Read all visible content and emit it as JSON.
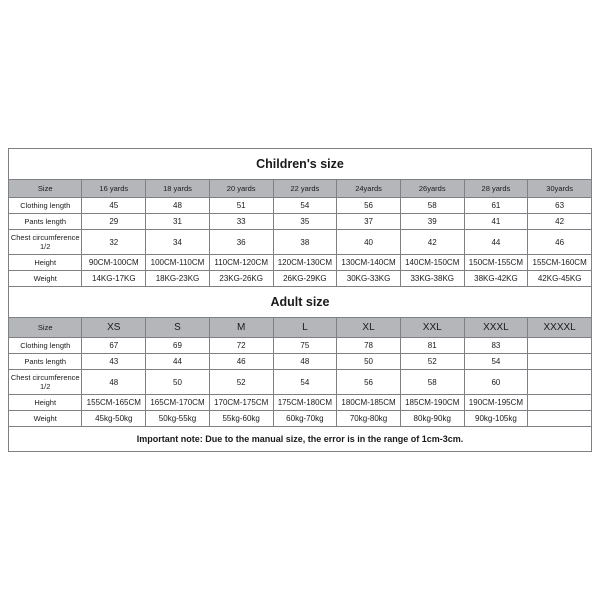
{
  "children": {
    "title": "Children's size",
    "headers": [
      "Size",
      "16 yards",
      "18 yards",
      "20 yards",
      "22 yards",
      "24yards",
      "26yards",
      "28 yards",
      "30yards"
    ],
    "rows": [
      {
        "label": "Clothing length",
        "cells": [
          "45",
          "48",
          "51",
          "54",
          "56",
          "58",
          "61",
          "63"
        ]
      },
      {
        "label": "Pants length",
        "cells": [
          "29",
          "31",
          "33",
          "35",
          "37",
          "39",
          "41",
          "42"
        ]
      },
      {
        "label": "Chest circumference 1/2",
        "cells": [
          "32",
          "34",
          "36",
          "38",
          "40",
          "42",
          "44",
          "46"
        ]
      },
      {
        "label": "Height",
        "cells": [
          "90CM-100CM",
          "100CM-110CM",
          "110CM-120CM",
          "120CM-130CM",
          "130CM-140CM",
          "140CM-150CM",
          "150CM-155CM",
          "155CM-160CM"
        ]
      },
      {
        "label": "Weight",
        "cells": [
          "14KG-17KG",
          "18KG-23KG",
          "23KG-26KG",
          "26KG-29KG",
          "30KG-33KG",
          "33KG-38KG",
          "38KG-42KG",
          "42KG-45KG"
        ]
      }
    ]
  },
  "adult": {
    "title": "Adult size",
    "headers": [
      "Size",
      "XS",
      "S",
      "M",
      "L",
      "XL",
      "XXL",
      "XXXL",
      "XXXXL"
    ],
    "rows": [
      {
        "label": "Clothing length",
        "cells": [
          "67",
          "69",
          "72",
          "75",
          "78",
          "81",
          "83",
          ""
        ]
      },
      {
        "label": "Pants length",
        "cells": [
          "43",
          "44",
          "46",
          "48",
          "50",
          "52",
          "54",
          ""
        ]
      },
      {
        "label": "Chest circumference 1/2",
        "cells": [
          "48",
          "50",
          "52",
          "54",
          "56",
          "58",
          "60",
          ""
        ]
      },
      {
        "label": "Height",
        "cells": [
          "155CM-165CM",
          "165CM-170CM",
          "170CM-175CM",
          "175CM-180CM",
          "180CM-185CM",
          "185CM-190CM",
          "190CM-195CM",
          ""
        ]
      },
      {
        "label": "Weight",
        "cells": [
          "45kg-50kg",
          "50kg-55kg",
          "55kg-60kg",
          "60kg-70kg",
          "70kg-80kg",
          "80kg-90kg",
          "90kg-105kg",
          ""
        ]
      }
    ]
  },
  "note": "Important note: Due to the manual size, the error is in the range of 1cm-3cm."
}
